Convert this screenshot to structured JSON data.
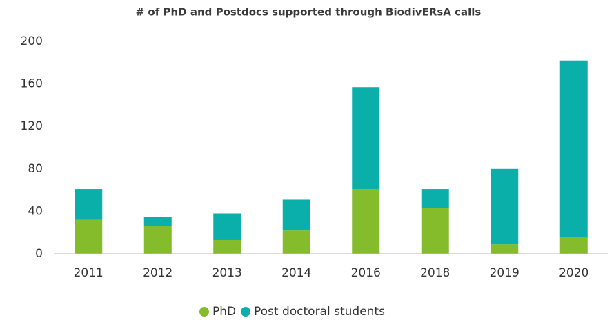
{
  "chart_data": {
    "type": "bar",
    "stacked": true,
    "title": "# of PhD and Postdocs supported through BiodivERsA calls",
    "categories": [
      "2011",
      "2012",
      "2013",
      "2014",
      "2016",
      "2018",
      "2019",
      "2020"
    ],
    "series": [
      {
        "name": "PhD",
        "color": "#84bc2b",
        "values": [
          32,
          26,
          13,
          22,
          61,
          43,
          9,
          16
        ]
      },
      {
        "name": "Post doctoral students",
        "color": "#0aafaa",
        "values": [
          29,
          9,
          25,
          29,
          96,
          18,
          71,
          166
        ]
      }
    ],
    "ylim": [
      0,
      200
    ],
    "yticks": [
      0,
      40,
      80,
      120,
      160,
      200
    ],
    "grid": false,
    "legend": "bottom"
  }
}
